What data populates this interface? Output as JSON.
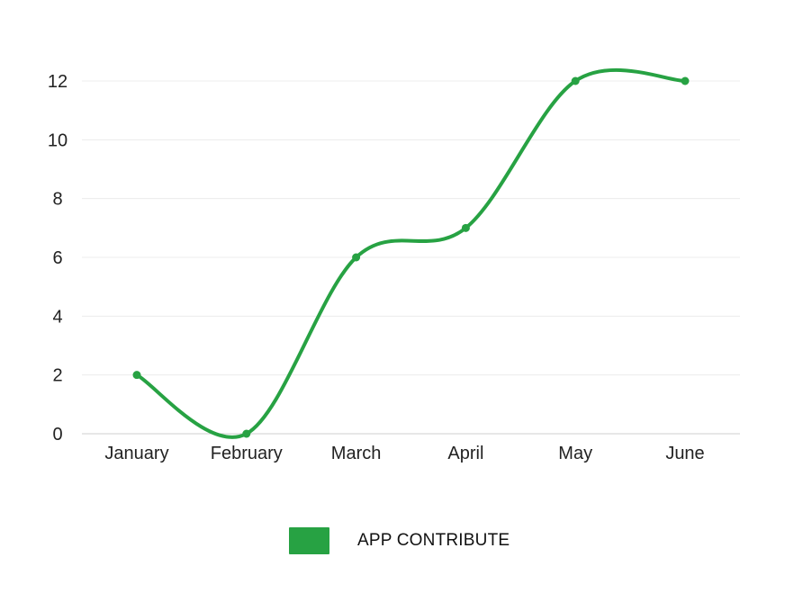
{
  "chart_data": {
    "type": "line",
    "title": "",
    "xlabel": "",
    "ylabel": "",
    "categories": [
      "January",
      "February",
      "March",
      "April",
      "May",
      "June"
    ],
    "series": [
      {
        "name": "APP CONTRIBUTE",
        "values": [
          2,
          0,
          6,
          7,
          12,
          12
        ],
        "color": "#27a243"
      }
    ],
    "ylim": [
      0,
      12
    ],
    "yticks": [
      0,
      2,
      4,
      6,
      8,
      10,
      12
    ],
    "grid": true,
    "smooth": true,
    "legend_position": "bottom-center"
  }
}
